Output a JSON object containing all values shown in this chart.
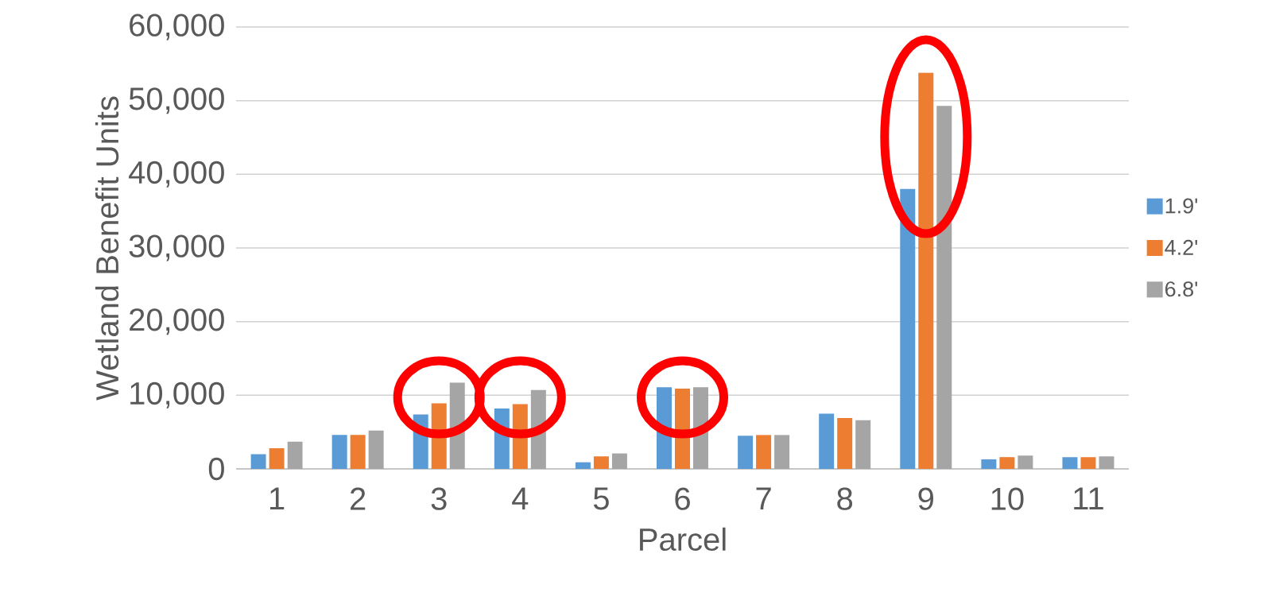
{
  "chart_data": {
    "type": "bar",
    "xlabel": "Parcel",
    "ylabel": "Wetland Benefit Units",
    "categories": [
      "1",
      "2",
      "3",
      "4",
      "5",
      "6",
      "7",
      "8",
      "9",
      "10",
      "11"
    ],
    "series": [
      {
        "name": "1.9'",
        "color": "#5b9bd5",
        "values": [
          2000,
          4600,
          7400,
          8200,
          900,
          11100,
          4500,
          7500,
          38000,
          1300,
          1600
        ]
      },
      {
        "name": "4.2'",
        "color": "#ed7d31",
        "values": [
          2800,
          4600,
          8900,
          8800,
          1700,
          10900,
          4600,
          6900,
          53800,
          1600,
          1600
        ]
      },
      {
        "name": "6.8'",
        "color": "#a5a5a5",
        "values": [
          3700,
          5200,
          11700,
          10700,
          2100,
          11100,
          4600,
          6600,
          49300,
          1800,
          1700
        ]
      }
    ],
    "ylim": [
      0,
      60000
    ],
    "yticks": [
      {
        "value": 0,
        "label": "0"
      },
      {
        "value": 10000,
        "label": "10,000"
      },
      {
        "value": 20000,
        "label": "20,000"
      },
      {
        "value": 30000,
        "label": "30,000"
      },
      {
        "value": 40000,
        "label": "40,000"
      },
      {
        "value": 50000,
        "label": "50,000"
      },
      {
        "value": 60000,
        "label": "60,000"
      }
    ],
    "grid": "y",
    "legend": "right"
  }
}
